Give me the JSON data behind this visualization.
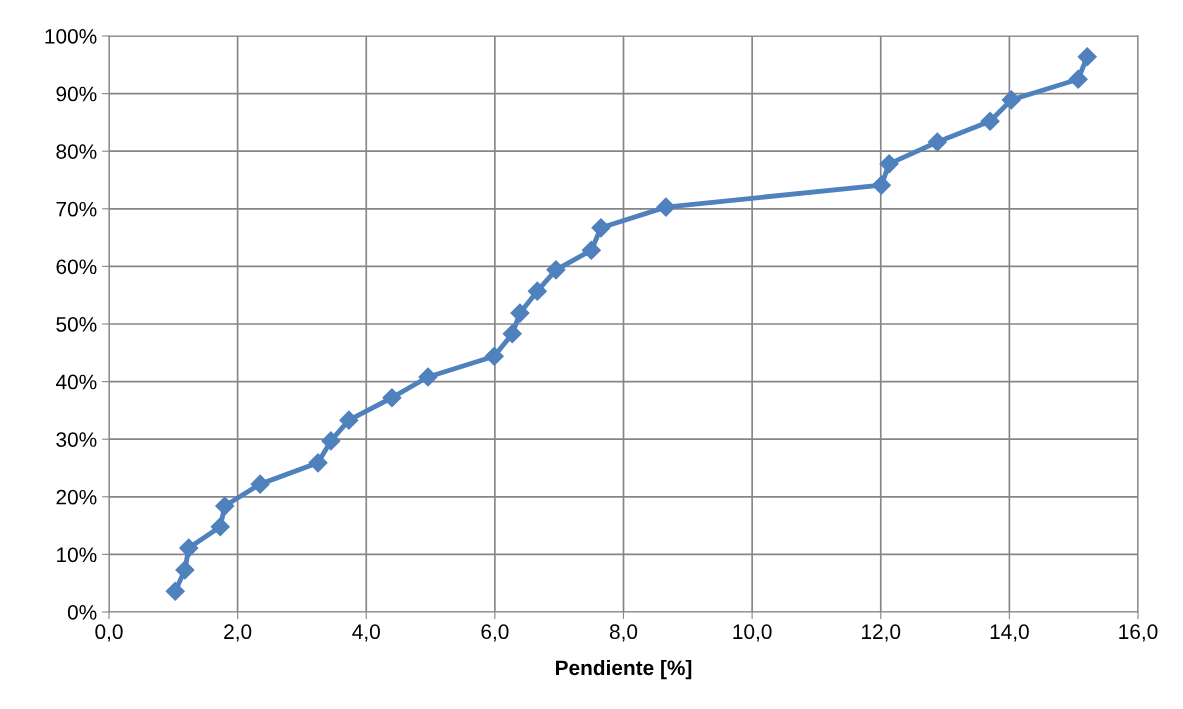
{
  "chart_data": {
    "type": "line",
    "xlabel": "Pendiente [%]",
    "series": [
      {
        "color": "#4f81bd",
        "x": [
          1.03,
          1.18,
          1.24,
          1.73,
          1.8,
          2.35,
          3.25,
          3.45,
          3.73,
          4.4,
          4.96,
          5.99,
          6.27,
          6.39,
          6.66,
          6.95,
          7.5,
          7.65,
          8.66,
          12.01,
          12.13,
          12.88,
          13.7,
          14.03,
          15.07,
          15.21
        ],
        "values": [
          3.6,
          7.3,
          11.1,
          14.8,
          18.4,
          22.2,
          25.9,
          29.7,
          33.3,
          37.2,
          40.8,
          44.4,
          48.3,
          51.9,
          55.7,
          59.4,
          62.8,
          66.7,
          70.3,
          74.1,
          77.8,
          81.6,
          85.2,
          88.9,
          92.5,
          96.4
        ]
      }
    ],
    "xlim": [
      0,
      16
    ],
    "xticks": [
      {
        "value": 0,
        "label": "0,0"
      },
      {
        "value": 2,
        "label": "2,0"
      },
      {
        "value": 4,
        "label": "4,0"
      },
      {
        "value": 6,
        "label": "6,0"
      },
      {
        "value": 8,
        "label": "8,0"
      },
      {
        "value": 10,
        "label": "10,0"
      },
      {
        "value": 12,
        "label": "12,0"
      },
      {
        "value": 14,
        "label": "14,0"
      },
      {
        "value": 16,
        "label": "16,0"
      }
    ],
    "ylim": [
      0,
      100
    ],
    "yticks": [
      {
        "value": 0,
        "label": "0%"
      },
      {
        "value": 10,
        "label": "10%"
      },
      {
        "value": 20,
        "label": "20%"
      },
      {
        "value": 30,
        "label": "30%"
      },
      {
        "value": 40,
        "label": "40%"
      },
      {
        "value": 50,
        "label": "50%"
      },
      {
        "value": 60,
        "label": "60%"
      },
      {
        "value": 70,
        "label": "70%"
      },
      {
        "value": 80,
        "label": "80%"
      },
      {
        "value": 90,
        "label": "90%"
      },
      {
        "value": 100,
        "label": "100%"
      }
    ],
    "grid": true,
    "marker": "diamond",
    "line_style": "solid",
    "legend": false
  }
}
